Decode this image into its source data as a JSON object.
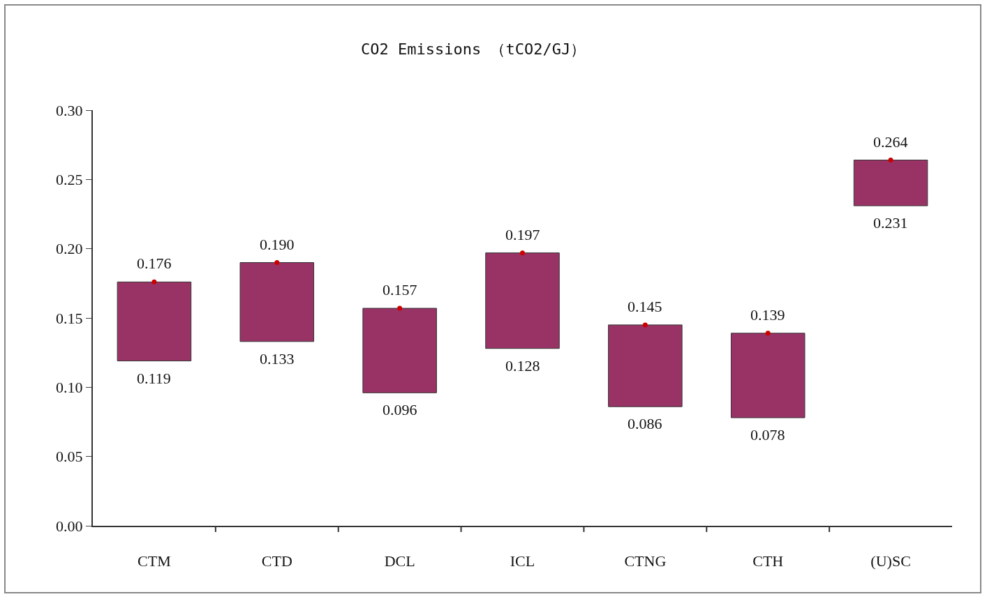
{
  "chart_data": {
    "type": "bar",
    "title": "CO2 Emissions （tCO2/GJ）",
    "categories": [
      "CTM",
      "CTD",
      "DCL",
      "ICL",
      "CTNG",
      "CTH",
      "(U)SC"
    ],
    "series": [
      {
        "color": "#993366",
        "values": [
          0.057,
          0.057,
          0.061,
          0.069,
          0.059,
          0.061,
          0.033
        ],
        "base": [
          0.119,
          0.133,
          0.096,
          0.128,
          0.086,
          0.078,
          0.231
        ]
      },
      {
        "type": "scatter",
        "color": "#cc0000",
        "x": [
          "CTM",
          "CTD",
          "DCL",
          "ICL",
          "CTNG",
          "CTH",
          "(U)SC"
        ],
        "values": [
          0.176,
          0.19,
          0.157,
          0.197,
          0.145,
          0.139,
          0.264
        ]
      }
    ],
    "ylim": [
      0,
      0.3
    ],
    "yticks": [
      {
        "value": 0,
        "label": "0.00"
      },
      {
        "value": 0.05,
        "label": "0.05"
      },
      {
        "value": 0.1,
        "label": "0.10"
      },
      {
        "value": 0.15,
        "label": "0.15"
      },
      {
        "value": 0.2,
        "label": "0.20"
      },
      {
        "value": 0.25,
        "label": "0.25"
      },
      {
        "value": 0.3,
        "label": "0.30"
      }
    ],
    "grid": false,
    "marker": "circle",
    "annotations": [
      {
        "text": "0.176",
        "x": "CTM",
        "y": 0.176
      },
      {
        "text": "0.119",
        "x": "CTM",
        "y": 0.119
      },
      {
        "text": "0.190",
        "x": "CTD",
        "y": 0.19
      },
      {
        "text": "0.133",
        "x": "CTD",
        "y": 0.133
      },
      {
        "text": "0.157",
        "x": "DCL",
        "y": 0.157
      },
      {
        "text": "0.096",
        "x": "DCL",
        "y": 0.096
      },
      {
        "text": "0.197",
        "x": "ICL",
        "y": 0.197
      },
      {
        "text": "0.128",
        "x": "ICL",
        "y": 0.128
      },
      {
        "text": "0.145",
        "x": "CTNG",
        "y": 0.145
      },
      {
        "text": "0.086",
        "x": "CTNG",
        "y": 0.086
      },
      {
        "text": "0.139",
        "x": "CTH",
        "y": 0.139
      },
      {
        "text": "0.078",
        "x": "CTH",
        "y": 0.078
      },
      {
        "text": "0.264",
        "x": "(U)SC",
        "y": 0.264
      },
      {
        "text": "0.231",
        "x": "(U)SC",
        "y": 0.231
      }
    ]
  }
}
